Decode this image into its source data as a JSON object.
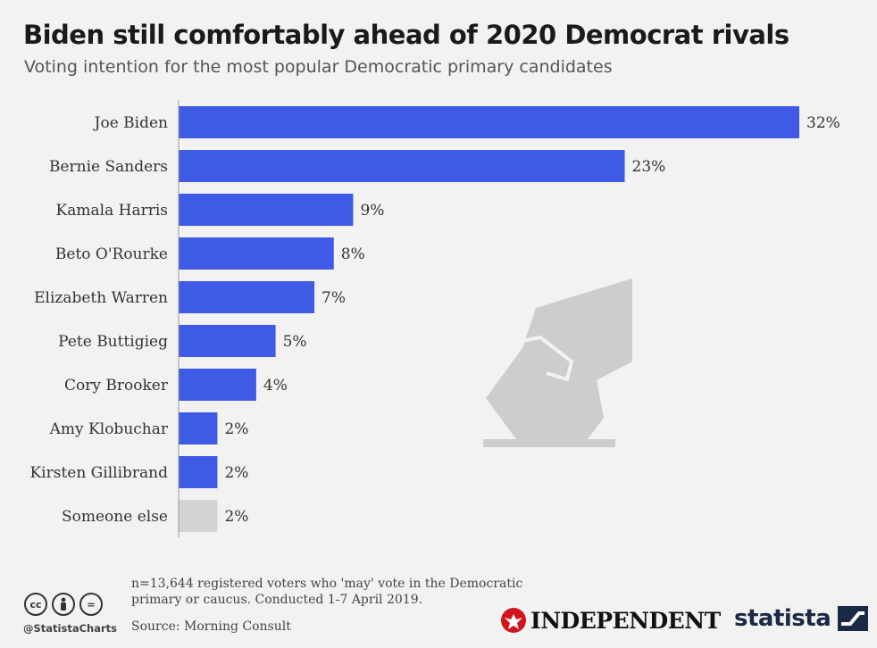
{
  "chart_data": {
    "type": "bar",
    "orientation": "horizontal",
    "title": "Biden still comfortably ahead of 2020 Democrat rivals",
    "subtitle": "Voting intention for the most popular Democratic primary candidates",
    "categories": [
      "Joe Biden",
      "Bernie Sanders",
      "Kamala Harris",
      "Beto O'Rourke",
      "Elizabeth Warren",
      "Pete Buttigieg",
      "Cory Brooker",
      "Amy Klobuchar",
      "Kirsten Gillibrand",
      "Someone else"
    ],
    "values": [
      32,
      23,
      9,
      8,
      7,
      5,
      4,
      2,
      2,
      2
    ],
    "value_suffix": "%",
    "xlim": [
      0,
      32
    ],
    "xlabel": "",
    "ylabel": "",
    "grid": false,
    "colors": {
      "bar": "#3f5be6",
      "bar_other": "#d3d3d3",
      "axis": "#999999",
      "watermark": "#cdcdcd"
    }
  },
  "footer": {
    "note": "n=13,644 registered voters who 'may' vote in the Democratic primary or caucus. Conducted 1-7 April 2019.",
    "source": "Source: Morning Consult",
    "handle": "@StatistaCharts",
    "publisher": "INDEPENDENT",
    "brand": "statista",
    "cc_icons": [
      "cc-icon",
      "by-person-icon",
      "nd-equals-icon"
    ],
    "cc_glyphs": [
      "cc",
      "="
    ]
  }
}
